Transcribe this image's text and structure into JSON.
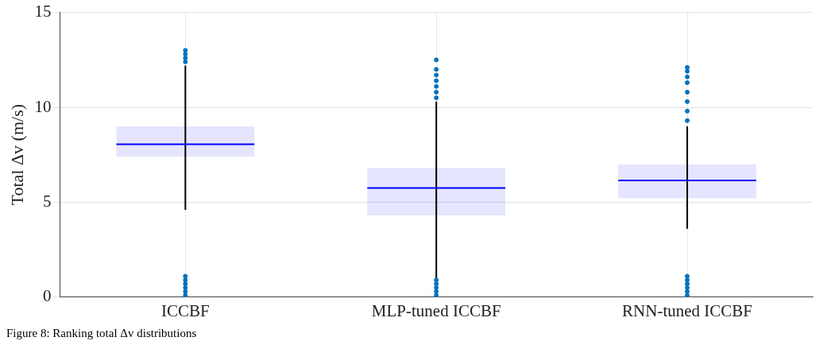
{
  "chart_data": {
    "type": "box",
    "categories": [
      "ICCBF",
      "MLP-tuned ICCBF",
      "RNN-tuned ICCBF"
    ],
    "ylabel": "Total Δv (m/s)",
    "ylim": [
      0,
      15
    ],
    "yticks": [
      0,
      5,
      10,
      15
    ],
    "grid": true,
    "color": "#0000ff",
    "boxes": [
      {
        "low": 4.6,
        "q1": 7.4,
        "median": 8.05,
        "q3": 9.0,
        "high": 12.2,
        "outliers": [
          0.1,
          0.3,
          0.5,
          0.7,
          0.9,
          1.1,
          12.4,
          12.6,
          12.8,
          13.0
        ]
      },
      {
        "low": 0.9,
        "q1": 4.3,
        "median": 5.75,
        "q3": 6.8,
        "high": 10.3,
        "outliers": [
          0.1,
          0.3,
          0.5,
          0.7,
          0.9,
          10.5,
          10.8,
          11.1,
          11.4,
          11.7,
          12.0,
          12.5
        ]
      },
      {
        "low": 3.6,
        "q1": 5.2,
        "median": 6.15,
        "q3": 7.0,
        "high": 9.0,
        "outliers": [
          0.1,
          0.3,
          0.5,
          0.7,
          0.9,
          1.1,
          9.3,
          9.8,
          10.3,
          10.8,
          11.3,
          11.6,
          11.9,
          12.1
        ]
      }
    ],
    "annotations": [
      "Figure 8: Ranking total Δv distributions"
    ]
  }
}
